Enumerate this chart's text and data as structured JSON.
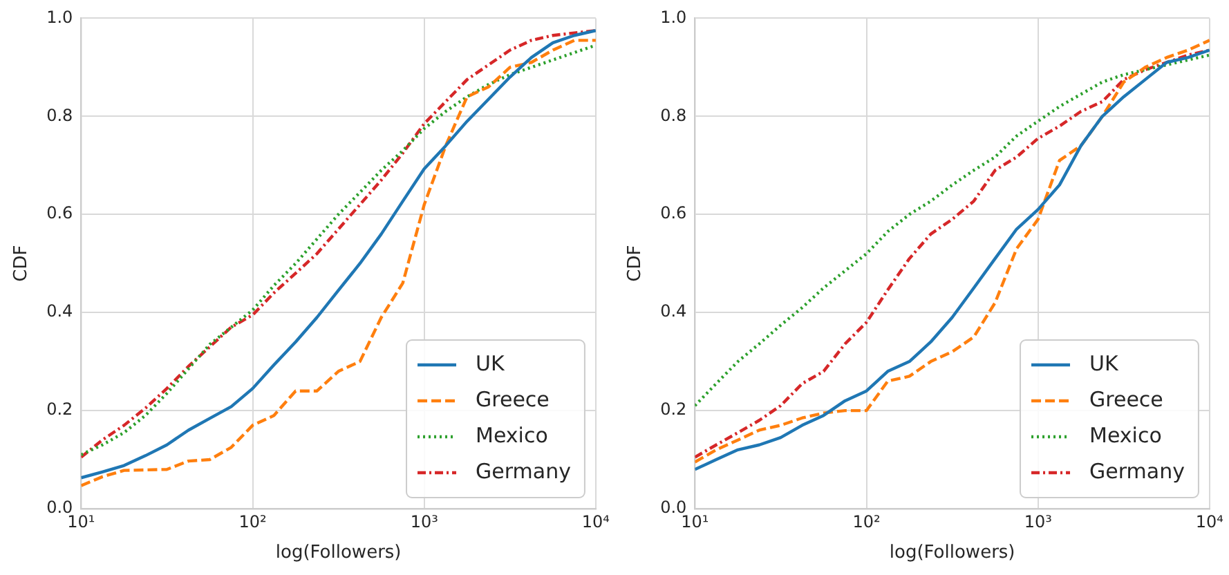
{
  "chart_data": [
    {
      "type": "line",
      "xlabel": "log(Followers)",
      "ylabel": "CDF",
      "log": "x",
      "grid": true,
      "legend": "bottom right",
      "marker": "none",
      "x": [
        10,
        13.3,
        17.8,
        23.7,
        31.6,
        42.2,
        56.2,
        75,
        100,
        133,
        178,
        237,
        316,
        422,
        562,
        750,
        1000,
        1334,
        1778,
        2371,
        3162,
        4217,
        5623,
        7499,
        10000
      ],
      "xlim": [
        10,
        10000
      ],
      "xticks": [
        {
          "value": 10,
          "label": "10¹"
        },
        {
          "value": 100,
          "label": "10²"
        },
        {
          "value": 1000,
          "label": "10³"
        },
        {
          "value": 10000,
          "label": "10⁴"
        }
      ],
      "ylim": [
        0,
        1
      ],
      "yticks": [
        {
          "value": 0,
          "label": "0.0"
        },
        {
          "value": 0.2,
          "label": "0.2"
        },
        {
          "value": 0.4,
          "label": "0.4"
        },
        {
          "value": 0.6,
          "label": "0.6"
        },
        {
          "value": 0.8,
          "label": "0.8"
        },
        {
          "value": 1,
          "label": "1.0"
        }
      ],
      "series": [
        {
          "name": "UK",
          "color": "#1f77b4",
          "line_style": "solid",
          "values": [
            0.063,
            0.075,
            0.088,
            0.108,
            0.13,
            0.16,
            0.184,
            0.208,
            0.245,
            0.293,
            0.34,
            0.39,
            0.445,
            0.5,
            0.56,
            0.627,
            0.693,
            0.74,
            0.79,
            0.835,
            0.88,
            0.92,
            0.95,
            0.965,
            0.975
          ]
        },
        {
          "name": "Greece",
          "color": "#ff7f0e",
          "line_style": "dashed",
          "values": [
            0.047,
            0.065,
            0.078,
            0.079,
            0.08,
            0.097,
            0.1,
            0.125,
            0.17,
            0.19,
            0.24,
            0.24,
            0.28,
            0.3,
            0.39,
            0.46,
            0.62,
            0.74,
            0.84,
            0.86,
            0.9,
            0.91,
            0.935,
            0.955,
            0.955
          ]
        },
        {
          "name": "Mexico",
          "color": "#2ca02c",
          "line_style": "dotted",
          "values": [
            0.11,
            0.13,
            0.155,
            0.19,
            0.235,
            0.285,
            0.335,
            0.37,
            0.405,
            0.455,
            0.5,
            0.55,
            0.6,
            0.645,
            0.69,
            0.73,
            0.775,
            0.81,
            0.84,
            0.865,
            0.885,
            0.9,
            0.915,
            0.93,
            0.945
          ]
        },
        {
          "name": "Germany",
          "color": "#d62728",
          "line_style": "dashdot",
          "values": [
            0.105,
            0.14,
            0.17,
            0.205,
            0.245,
            0.29,
            0.33,
            0.37,
            0.395,
            0.44,
            0.48,
            0.52,
            0.57,
            0.62,
            0.67,
            0.725,
            0.785,
            0.83,
            0.875,
            0.905,
            0.935,
            0.955,
            0.965,
            0.97,
            0.975
          ]
        }
      ]
    },
    {
      "type": "line",
      "xlabel": "log(Followers)",
      "ylabel": "CDF",
      "log": "x",
      "grid": true,
      "legend": "bottom right",
      "marker": "none",
      "x": [
        10,
        13.3,
        17.8,
        23.7,
        31.6,
        42.2,
        56.2,
        75,
        100,
        133,
        178,
        237,
        316,
        422,
        562,
        750,
        1000,
        1334,
        1778,
        2371,
        3162,
        4217,
        5623,
        7499,
        10000
      ],
      "xlim": [
        10,
        10000
      ],
      "xticks": [
        {
          "value": 10,
          "label": "10¹"
        },
        {
          "value": 100,
          "label": "10²"
        },
        {
          "value": 1000,
          "label": "10³"
        },
        {
          "value": 10000,
          "label": "10⁴"
        }
      ],
      "ylim": [
        0,
        1
      ],
      "yticks": [
        {
          "value": 0,
          "label": "0.0"
        },
        {
          "value": 0.2,
          "label": "0.2"
        },
        {
          "value": 0.4,
          "label": "0.4"
        },
        {
          "value": 0.6,
          "label": "0.6"
        },
        {
          "value": 0.8,
          "label": "0.8"
        },
        {
          "value": 1,
          "label": "1.0"
        }
      ],
      "series": [
        {
          "name": "UK",
          "color": "#1f77b4",
          "line_style": "solid",
          "values": [
            0.08,
            0.1,
            0.12,
            0.13,
            0.145,
            0.17,
            0.19,
            0.22,
            0.24,
            0.28,
            0.3,
            0.34,
            0.39,
            0.45,
            0.51,
            0.57,
            0.61,
            0.66,
            0.74,
            0.8,
            0.84,
            0.875,
            0.91,
            0.92,
            0.935
          ]
        },
        {
          "name": "Greece",
          "color": "#ff7f0e",
          "line_style": "dashed",
          "values": [
            0.095,
            0.12,
            0.14,
            0.16,
            0.17,
            0.185,
            0.195,
            0.2,
            0.2,
            0.26,
            0.27,
            0.3,
            0.32,
            0.35,
            0.42,
            0.53,
            0.59,
            0.71,
            0.74,
            0.8,
            0.87,
            0.9,
            0.92,
            0.935,
            0.955
          ]
        },
        {
          "name": "Mexico",
          "color": "#2ca02c",
          "line_style": "dotted",
          "values": [
            0.21,
            0.255,
            0.3,
            0.336,
            0.374,
            0.41,
            0.45,
            0.485,
            0.52,
            0.565,
            0.6,
            0.627,
            0.66,
            0.69,
            0.717,
            0.76,
            0.79,
            0.82,
            0.845,
            0.87,
            0.885,
            0.895,
            0.905,
            0.915,
            0.925
          ]
        },
        {
          "name": "Germany",
          "color": "#d62728",
          "line_style": "dashdot",
          "values": [
            0.105,
            0.13,
            0.155,
            0.18,
            0.21,
            0.255,
            0.28,
            0.336,
            0.38,
            0.446,
            0.51,
            0.56,
            0.59,
            0.627,
            0.69,
            0.717,
            0.755,
            0.78,
            0.81,
            0.83,
            0.875,
            0.895,
            0.91,
            0.925,
            0.935
          ]
        }
      ]
    }
  ]
}
